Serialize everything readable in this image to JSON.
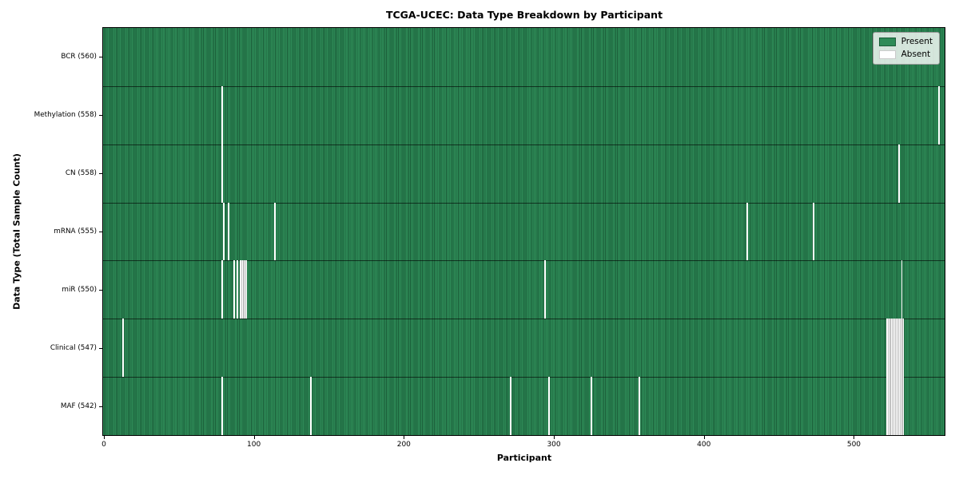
{
  "figure_title": "TCGA-UCEC: Data Type Breakdown by Participant",
  "axes": {
    "xlabel": "Participant",
    "ylabel": "Data Type (Total Sample Count)"
  },
  "legend": {
    "present_label": "Present",
    "absent_label": "Absent"
  },
  "colors": {
    "present": "#2e8b57",
    "present_edge": "#1a5c38",
    "absent": "#ffffff",
    "axis": "#000000",
    "legend_bg": "rgba(255,255,255,0.8)",
    "legend_border": "#999999"
  },
  "chart_data": {
    "type": "heatmap",
    "title": "TCGA-UCEC: Data Type Breakdown by Participant",
    "xlabel": "Participant",
    "ylabel": "Data Type (Total Sample Count)",
    "legend": [
      "Present",
      "Absent"
    ],
    "legend_position": "upper right",
    "grid": false,
    "n_participants": 560,
    "xlim": [
      -0.5,
      560.5
    ],
    "x_ticks": [
      0,
      100,
      200,
      300,
      400,
      500
    ],
    "value_encoding": "green cell = data present for participant, white cell = absent",
    "rows": [
      {
        "label": "BCR (560)",
        "data_type": "BCR",
        "total_sample_count": 560,
        "absent_count": 0,
        "absent_participants": []
      },
      {
        "label": "Methylation (558)",
        "data_type": "Methylation",
        "total_sample_count": 558,
        "absent_count": 2,
        "absent_participants": [
          79,
          557
        ]
      },
      {
        "label": "CN (558)",
        "data_type": "CN",
        "total_sample_count": 558,
        "absent_count": 2,
        "absent_participants": [
          79,
          530
        ]
      },
      {
        "label": "mRNA (555)",
        "data_type": "mRNA",
        "total_sample_count": 555,
        "absent_count": 5,
        "absent_participants": [
          80,
          83,
          114,
          429,
          473
        ]
      },
      {
        "label": "miR (550)",
        "data_type": "miR",
        "total_sample_count": 550,
        "absent_count": 10,
        "absent_participants": [
          79,
          87,
          89,
          91,
          92,
          93,
          94,
          95,
          294,
          532
        ]
      },
      {
        "label": "Clinical (547)",
        "data_type": "Clinical",
        "total_sample_count": 547,
        "absent_count": 13,
        "absent_participants": [
          13,
          522,
          523,
          524,
          525,
          526,
          527,
          528,
          529,
          530,
          531,
          532,
          533
        ]
      },
      {
        "label": "MAF (542)",
        "data_type": "MAF",
        "total_sample_count": 542,
        "absent_count": 18,
        "absent_participants": [
          79,
          138,
          271,
          297,
          325,
          357,
          522,
          523,
          524,
          525,
          526,
          527,
          528,
          529,
          530,
          531,
          532,
          533
        ]
      }
    ]
  }
}
